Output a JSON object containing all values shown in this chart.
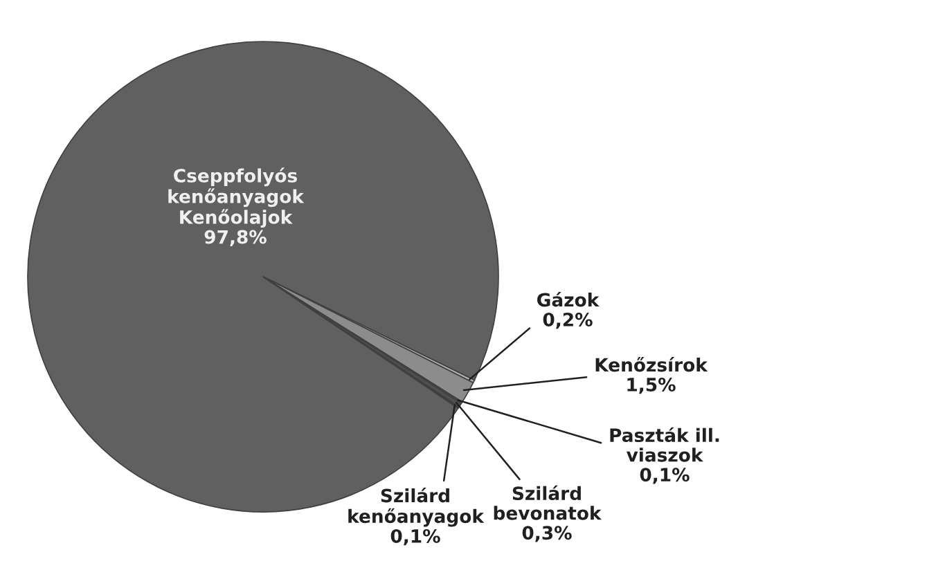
{
  "chart_data": {
    "type": "pie",
    "categories": [
      "Cseppfolyós\nkenőanyagok\nKenőolajok",
      "Gázok",
      "Kenőzsírok",
      "Paszták ill.\nviaszok",
      "Szilárd\nbevonatok",
      "Szilárd\nkenőanyagok"
    ],
    "values": [
      97.8,
      0.2,
      1.5,
      0.1,
      0.3,
      0.1
    ],
    "value_labels": [
      "97,8%",
      "0,2%",
      "1,5%",
      "0,1%",
      "0,3%",
      "0,1%"
    ],
    "colors": [
      "#606060",
      "#b0b0b0",
      "#8c8c8c",
      "#757575",
      "#4f4f4f",
      "#3a3a3a"
    ]
  }
}
